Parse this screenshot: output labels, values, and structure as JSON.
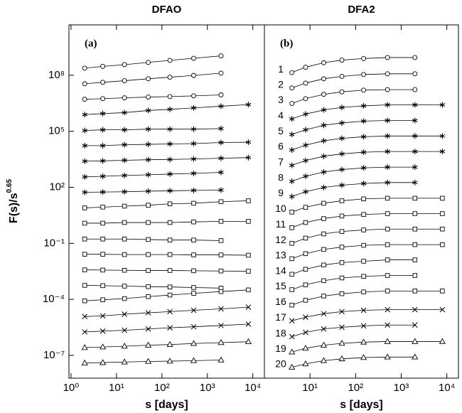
{
  "chart_data": [
    {
      "type": "line",
      "title": "DFAO",
      "panel_label": "(a)",
      "xlabel": "s [days]",
      "ylabel": "F(s)/s",
      "ylabel_exponent": "0.65",
      "log_x": true,
      "log_y": true,
      "color": "#000000",
      "xlim": [
        0.9,
        18000
      ],
      "ylim": [
        6e-09,
        50000000000
      ],
      "xticks": [
        {
          "value": 1,
          "label": "10⁰"
        },
        {
          "value": 10,
          "label": "10¹"
        },
        {
          "value": 100,
          "label": "10²"
        },
        {
          "value": 1000,
          "label": "10³"
        },
        {
          "value": 10000,
          "label": "10⁴"
        }
      ],
      "yticks": [
        {
          "value": 1e-07,
          "label": "10⁻⁷"
        },
        {
          "value": 0.0001,
          "label": "10⁻⁴"
        },
        {
          "value": 0.1,
          "label": "10⁻¹"
        },
        {
          "value": 100,
          "label": "10²"
        },
        {
          "value": 100000,
          "label": "10⁵"
        },
        {
          "value": 100000000,
          "label": "10⁸"
        }
      ],
      "x": [
        2,
        5,
        15,
        50,
        150,
        500,
        2000,
        8000
      ],
      "series": [
        {
          "marker": "circle",
          "values": [
            240000000.0,
            300000000.0,
            370000000.0,
            490000000.0,
            630000000.0,
            810000000.0,
            1100000000.0,
            null
          ]
        },
        {
          "marker": "circle",
          "values": [
            35000000.0,
            42000000.0,
            51000000.0,
            65000000.0,
            79000000.0,
            98000000.0,
            130000000.0,
            null
          ]
        },
        {
          "marker": "circle",
          "values": [
            5200000.0,
            5600000.0,
            6200000.0,
            6800000.0,
            7200000.0,
            7900000.0,
            8900000.0,
            null
          ]
        },
        {
          "marker": "asterisk",
          "values": [
            780000.0,
            890000.0,
            1000000.0,
            1300000.0,
            1500000.0,
            1800000.0,
            2200000.0,
            2700000.0
          ]
        },
        {
          "marker": "asterisk",
          "values": [
            110000.0,
            120000.0,
            120000.0,
            130000.0,
            130000.0,
            130000.0,
            140000.0,
            null
          ]
        },
        {
          "marker": "asterisk",
          "values": [
            17000.0,
            17000.0,
            19000.0,
            20000.0,
            21000.0,
            22000.0,
            25000.0,
            26000.0
          ]
        },
        {
          "marker": "asterisk",
          "values": [
            2500,
            2600,
            2800,
            3000,
            3100,
            3300,
            3600,
            3900
          ]
        },
        {
          "marker": "asterisk",
          "values": [
            360,
            390,
            430,
            470,
            510,
            560,
            630,
            null
          ]
        },
        {
          "marker": "asterisk",
          "values": [
            54,
            56,
            58,
            62,
            65,
            68,
            71,
            null
          ]
        },
        {
          "marker": "square",
          "values": [
            7.9,
            8.7,
            9.8,
            11,
            13,
            14,
            17,
            19
          ]
        },
        {
          "marker": "square",
          "values": [
            1.2,
            1.2,
            1.3,
            1.3,
            1.3,
            1.4,
            1.5,
            1.5
          ]
        },
        {
          "marker": "square",
          "values": [
            0.17,
            0.17,
            0.17,
            0.16,
            0.15,
            0.15,
            0.14,
            null
          ]
        },
        {
          "marker": "square",
          "values": [
            0.026,
            0.026,
            0.025,
            0.025,
            0.025,
            0.024,
            0.024,
            0.023
          ]
        },
        {
          "marker": "square",
          "values": [
            0.0038,
            0.0037,
            0.0036,
            0.0035,
            0.0035,
            0.0034,
            0.0033,
            0.0032
          ]
        },
        {
          "marker": "square",
          "values": [
            0.00056,
            0.00054,
            0.00051,
            0.00048,
            0.00046,
            0.00043,
            0.0004,
            null
          ]
        },
        {
          "marker": "square",
          "values": [
            8.3e-05,
            9.5e-05,
            0.00011,
            0.00014,
            0.00017,
            0.00021,
            0.00026,
            0.00032
          ]
        },
        {
          "marker": "x",
          "values": [
            1.2e-05,
            1.3e-05,
            1.6e-05,
            1.9e-05,
            2.2e-05,
            2.6e-05,
            3.1e-05,
            3.8e-05
          ]
        },
        {
          "marker": "x",
          "values": [
            1.8e-06,
            2e-06,
            2.2e-06,
            2.6e-06,
            3e-06,
            3.4e-06,
            4e-06,
            4.7e-06
          ]
        },
        {
          "marker": "triangle",
          "values": [
            2.6e-07,
            2.8e-07,
            3.1e-07,
            3.5e-07,
            3.8e-07,
            4.3e-07,
            4.8e-07,
            5.4e-07
          ]
        },
        {
          "marker": "triangle",
          "values": [
            3.9e-08,
            4.1e-08,
            4.4e-08,
            4.7e-08,
            4.9e-08,
            5.2e-08,
            5.6e-08,
            null
          ]
        }
      ]
    },
    {
      "type": "line",
      "title": "DFA2",
      "panel_label": "(b)",
      "xlabel": "s [days]",
      "log_x": true,
      "log_y": true,
      "color": "#000000",
      "xlim": [
        1,
        18000
      ],
      "ylim": [
        6e-09,
        50000000000
      ],
      "xticks": [
        {
          "value": 10,
          "label": "10¹"
        },
        {
          "value": 100,
          "label": "10²"
        },
        {
          "value": 1000,
          "label": "10³"
        },
        {
          "value": 10000,
          "label": "10⁴"
        }
      ],
      "x": [
        4,
        8,
        20,
        50,
        150,
        500,
        2000,
        8000
      ],
      "series": [
        {
          "name": "1",
          "marker": "circle",
          "values": [
            140000000.0,
            270000000.0,
            470000000.0,
            650000000.0,
            790000000.0,
            890000000.0,
            890000000.0,
            null
          ]
        },
        {
          "name": "2",
          "marker": "circle",
          "values": [
            21000000.0,
            38000000.0,
            65000000.0,
            87000000.0,
            110000000.0,
            120000000.0,
            120000000.0,
            null
          ]
        },
        {
          "name": "3",
          "marker": "circle",
          "values": [
            3100000.0,
            5600000.0,
            9500000.0,
            13000000.0,
            16000000.0,
            17000000.0,
            17000000.0,
            null
          ]
        },
        {
          "name": "4",
          "marker": "asterisk",
          "values": [
            460000.0,
            830000.0,
            1400000.0,
            1900000.0,
            2300000.0,
            2600000.0,
            2600000.0,
            2600000.0
          ]
        },
        {
          "name": "5",
          "marker": "asterisk",
          "values": [
            68000.0,
            120000.0,
            210000.0,
            280000.0,
            350000.0,
            380000.0,
            380000.0,
            null
          ]
        },
        {
          "name": "6",
          "marker": "asterisk",
          "values": [
            10000.0,
            18000.0,
            31000.0,
            42000.0,
            51000.0,
            56000.0,
            56000.0,
            56000.0
          ]
        },
        {
          "name": "7",
          "marker": "asterisk",
          "values": [
            1500,
            2700,
            4600,
            6200,
            7600,
            8300,
            8300,
            8300
          ]
        },
        {
          "name": "8",
          "marker": "asterisk",
          "values": [
            210,
            390,
            660,
            890,
            1100,
            1200,
            1200,
            null
          ]
        },
        {
          "name": "9",
          "marker": "asterisk",
          "values": [
            32,
            58,
            98,
            130,
            160,
            180,
            180,
            null
          ]
        },
        {
          "name": "10",
          "marker": "square",
          "values": [
            4.7,
            8.5,
            14,
            19,
            24,
            26,
            26,
            26
          ]
        },
        {
          "name": "11",
          "marker": "square",
          "values": [
            0.69,
            1.3,
            2.1,
            2.9,
            3.5,
            3.9,
            3.9,
            3.9
          ]
        },
        {
          "name": "12",
          "marker": "square",
          "values": [
            0.1,
            0.19,
            0.32,
            0.43,
            0.52,
            0.58,
            0.58,
            0.58
          ]
        },
        {
          "name": "13",
          "marker": "square",
          "values": [
            0.015,
            0.028,
            0.047,
            0.063,
            0.078,
            0.085,
            0.085,
            0.085
          ]
        },
        {
          "name": "14",
          "marker": "square",
          "values": [
            0.0022,
            0.0041,
            0.0069,
            0.0093,
            0.011,
            0.013,
            0.013,
            null
          ]
        },
        {
          "name": "15",
          "marker": "square",
          "values": [
            0.00033,
            0.0006,
            0.001,
            0.0014,
            0.0017,
            0.0019,
            0.0019,
            null
          ]
        },
        {
          "name": "16",
          "marker": "square",
          "values": [
            4.9e-05,
            8.9e-05,
            0.00015,
            0.0002,
            0.00025,
            0.00028,
            0.00028,
            0.00028
          ]
        },
        {
          "name": "17",
          "marker": "x",
          "values": [
            7.1e-06,
            1.1e-05,
            1.7e-05,
            2.2e-05,
            2.6e-05,
            2.8e-05,
            2.8e-05,
            2.8e-05
          ]
        },
        {
          "name": "18",
          "marker": "x",
          "values": [
            1e-06,
            1.7e-06,
            2.6e-06,
            3.2e-06,
            3.8e-06,
            4.2e-06,
            4.2e-06,
            null
          ]
        },
        {
          "name": "19",
          "marker": "triangle",
          "values": [
            1.5e-07,
            2.4e-07,
            3.5e-07,
            4.4e-07,
            5.1e-07,
            5.5e-07,
            5.5e-07,
            5.5e-07
          ]
        },
        {
          "name": "20",
          "marker": "triangle",
          "values": [
            2.3e-08,
            3.5e-08,
            5.2e-08,
            6.5e-08,
            7.6e-08,
            8.1e-08,
            8.1e-08,
            null
          ]
        }
      ]
    }
  ]
}
